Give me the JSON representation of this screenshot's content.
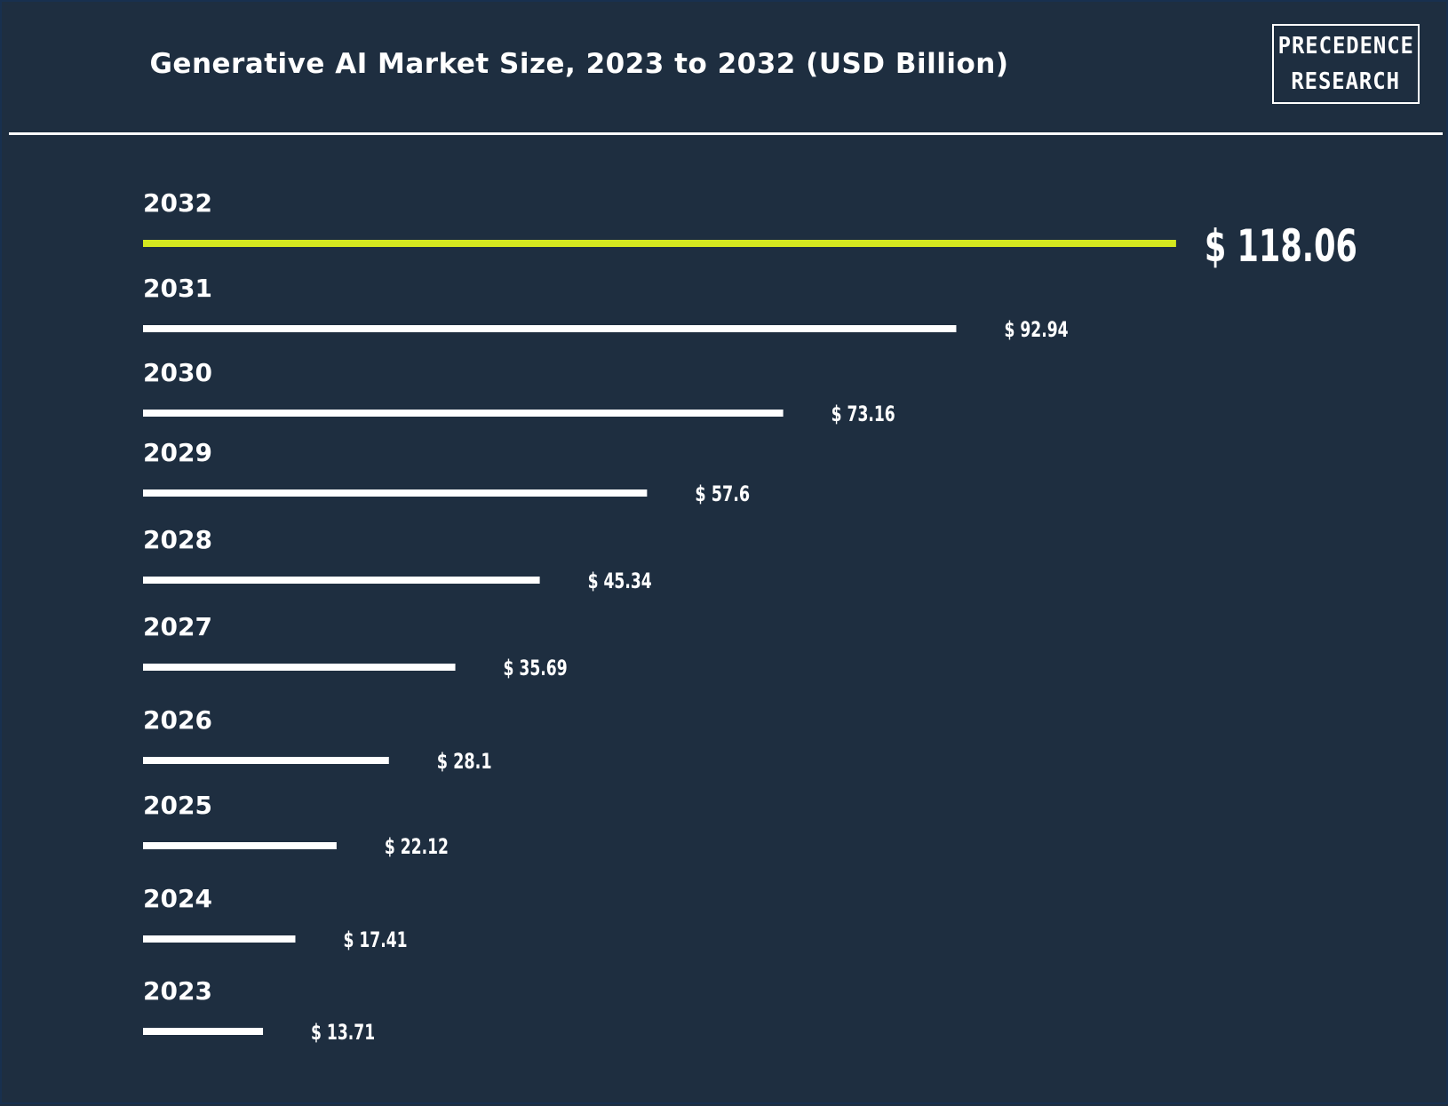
{
  "header": {
    "title": "Generative AI Market Size, 2023 to 2032 (USD Billion)",
    "logo_line1": "PRECEDENCE",
    "logo_line2": "RESEARCH"
  },
  "colors": {
    "background": "#1e2e40",
    "bar": "#ffffff",
    "highlight_bar": "#d4e81f",
    "text": "#ffffff"
  },
  "chart_data": {
    "type": "bar",
    "orientation": "horizontal",
    "title": "Generative AI Market Size, 2023 to 2032 (USD Billion)",
    "categories": [
      "2032",
      "2031",
      "2030",
      "2029",
      "2028",
      "2027",
      "2026",
      "2025",
      "2024",
      "2023"
    ],
    "values": [
      118.06,
      92.94,
      73.16,
      57.6,
      45.34,
      35.69,
      28.1,
      22.12,
      17.41,
      13.71
    ],
    "value_labels": [
      "$ 118.06",
      "$ 92.94",
      "$ 73.16",
      "$ 57.6",
      "$ 45.34",
      "$ 35.69",
      "$ 28.1",
      "$ 22.12",
      "$ 17.41",
      "$ 13.71"
    ],
    "highlight_index": 0,
    "xlabel": "",
    "ylabel": "",
    "grid": false,
    "legend": "none"
  }
}
